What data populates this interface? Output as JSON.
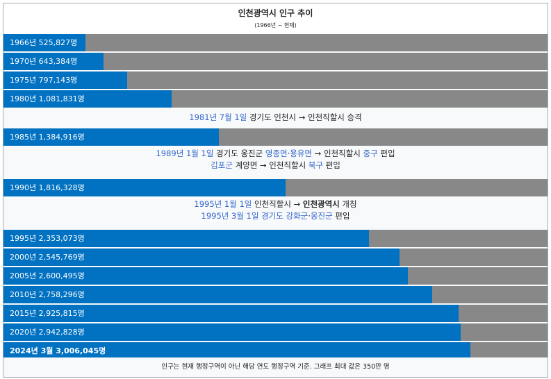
{
  "title": "인천광역시 인구 추이",
  "subtitle": "(1966년 ~ 현재)",
  "footer": "인구는 현재 행정구역이 아닌 해당 연도 행정구역 기준. 그래프 최대 값은 350만 명",
  "chart_data": {
    "type": "bar",
    "orientation": "horizontal",
    "title": "인천광역시 인구 추이",
    "subtitle": "(1966년 ~ 현재)",
    "xlim": [
      0,
      3500000
    ],
    "colors": {
      "bar": "#0171c2",
      "track": "#888888"
    },
    "bars": [
      {
        "label": "1966년 525,827명",
        "value": 525827
      },
      {
        "label": "1970년 643,384명",
        "value": 643384
      },
      {
        "label": "1975년 797,143명",
        "value": 797143
      },
      {
        "label": "1980년 1,081,831명",
        "value": 1081831
      },
      {
        "label": "1985년 1,384,916명",
        "value": 1384916
      },
      {
        "label": "1990년 1,816,328명",
        "value": 1816328
      },
      {
        "label": "1995년 2,353,073명",
        "value": 2353073
      },
      {
        "label": "2000년 2,545,769명",
        "value": 2545769
      },
      {
        "label": "2005년 2,600,495명",
        "value": 2600495
      },
      {
        "label": "2010년 2,758,296명",
        "value": 2758296
      },
      {
        "label": "2015년 2,925,815명",
        "value": 2925815
      },
      {
        "label": "2020년 2,942,828명",
        "value": 2942828
      },
      {
        "label": "2024년 3월 3,006,045명",
        "value": 3006045,
        "bold": true
      }
    ],
    "annotations": [
      {
        "after": "1980년",
        "lines": [
          [
            {
              "text": "1981년 7월 1일",
              "style": "blue"
            },
            {
              "text": " 경기도 인천시 → 인천직할시 승격"
            }
          ]
        ]
      },
      {
        "after": "1985년",
        "lines": [
          [
            {
              "text": "1989년 1월 1일",
              "style": "blue"
            },
            {
              "text": " 경기도 옹진군 "
            },
            {
              "text": "영종면",
              "style": "blue"
            },
            {
              "text": "·"
            },
            {
              "text": "용유면",
              "style": "blue"
            },
            {
              "text": " → 인천직할시 "
            },
            {
              "text": "중구",
              "style": "blue"
            },
            {
              "text": " 편입"
            }
          ],
          [
            {
              "text": "김포군",
              "style": "blue"
            },
            {
              "text": " 계양면 → 인천직할시 "
            },
            {
              "text": "북구",
              "style": "blue"
            },
            {
              "text": " 편입"
            }
          ]
        ]
      },
      {
        "after": "1990년",
        "lines": [
          [
            {
              "text": "1995년 1월 1일",
              "style": "blue"
            },
            {
              "text": " 인천직할시 → "
            },
            {
              "text": "인천광역시",
              "style": "bold"
            },
            {
              "text": " 개칭"
            }
          ],
          [
            {
              "text": "1995년 3월 1일 경기도 강화군",
              "style": "blue"
            },
            {
              "text": "·"
            },
            {
              "text": "옹진군",
              "style": "blue"
            },
            {
              "text": " 편입"
            }
          ]
        ]
      }
    ]
  }
}
